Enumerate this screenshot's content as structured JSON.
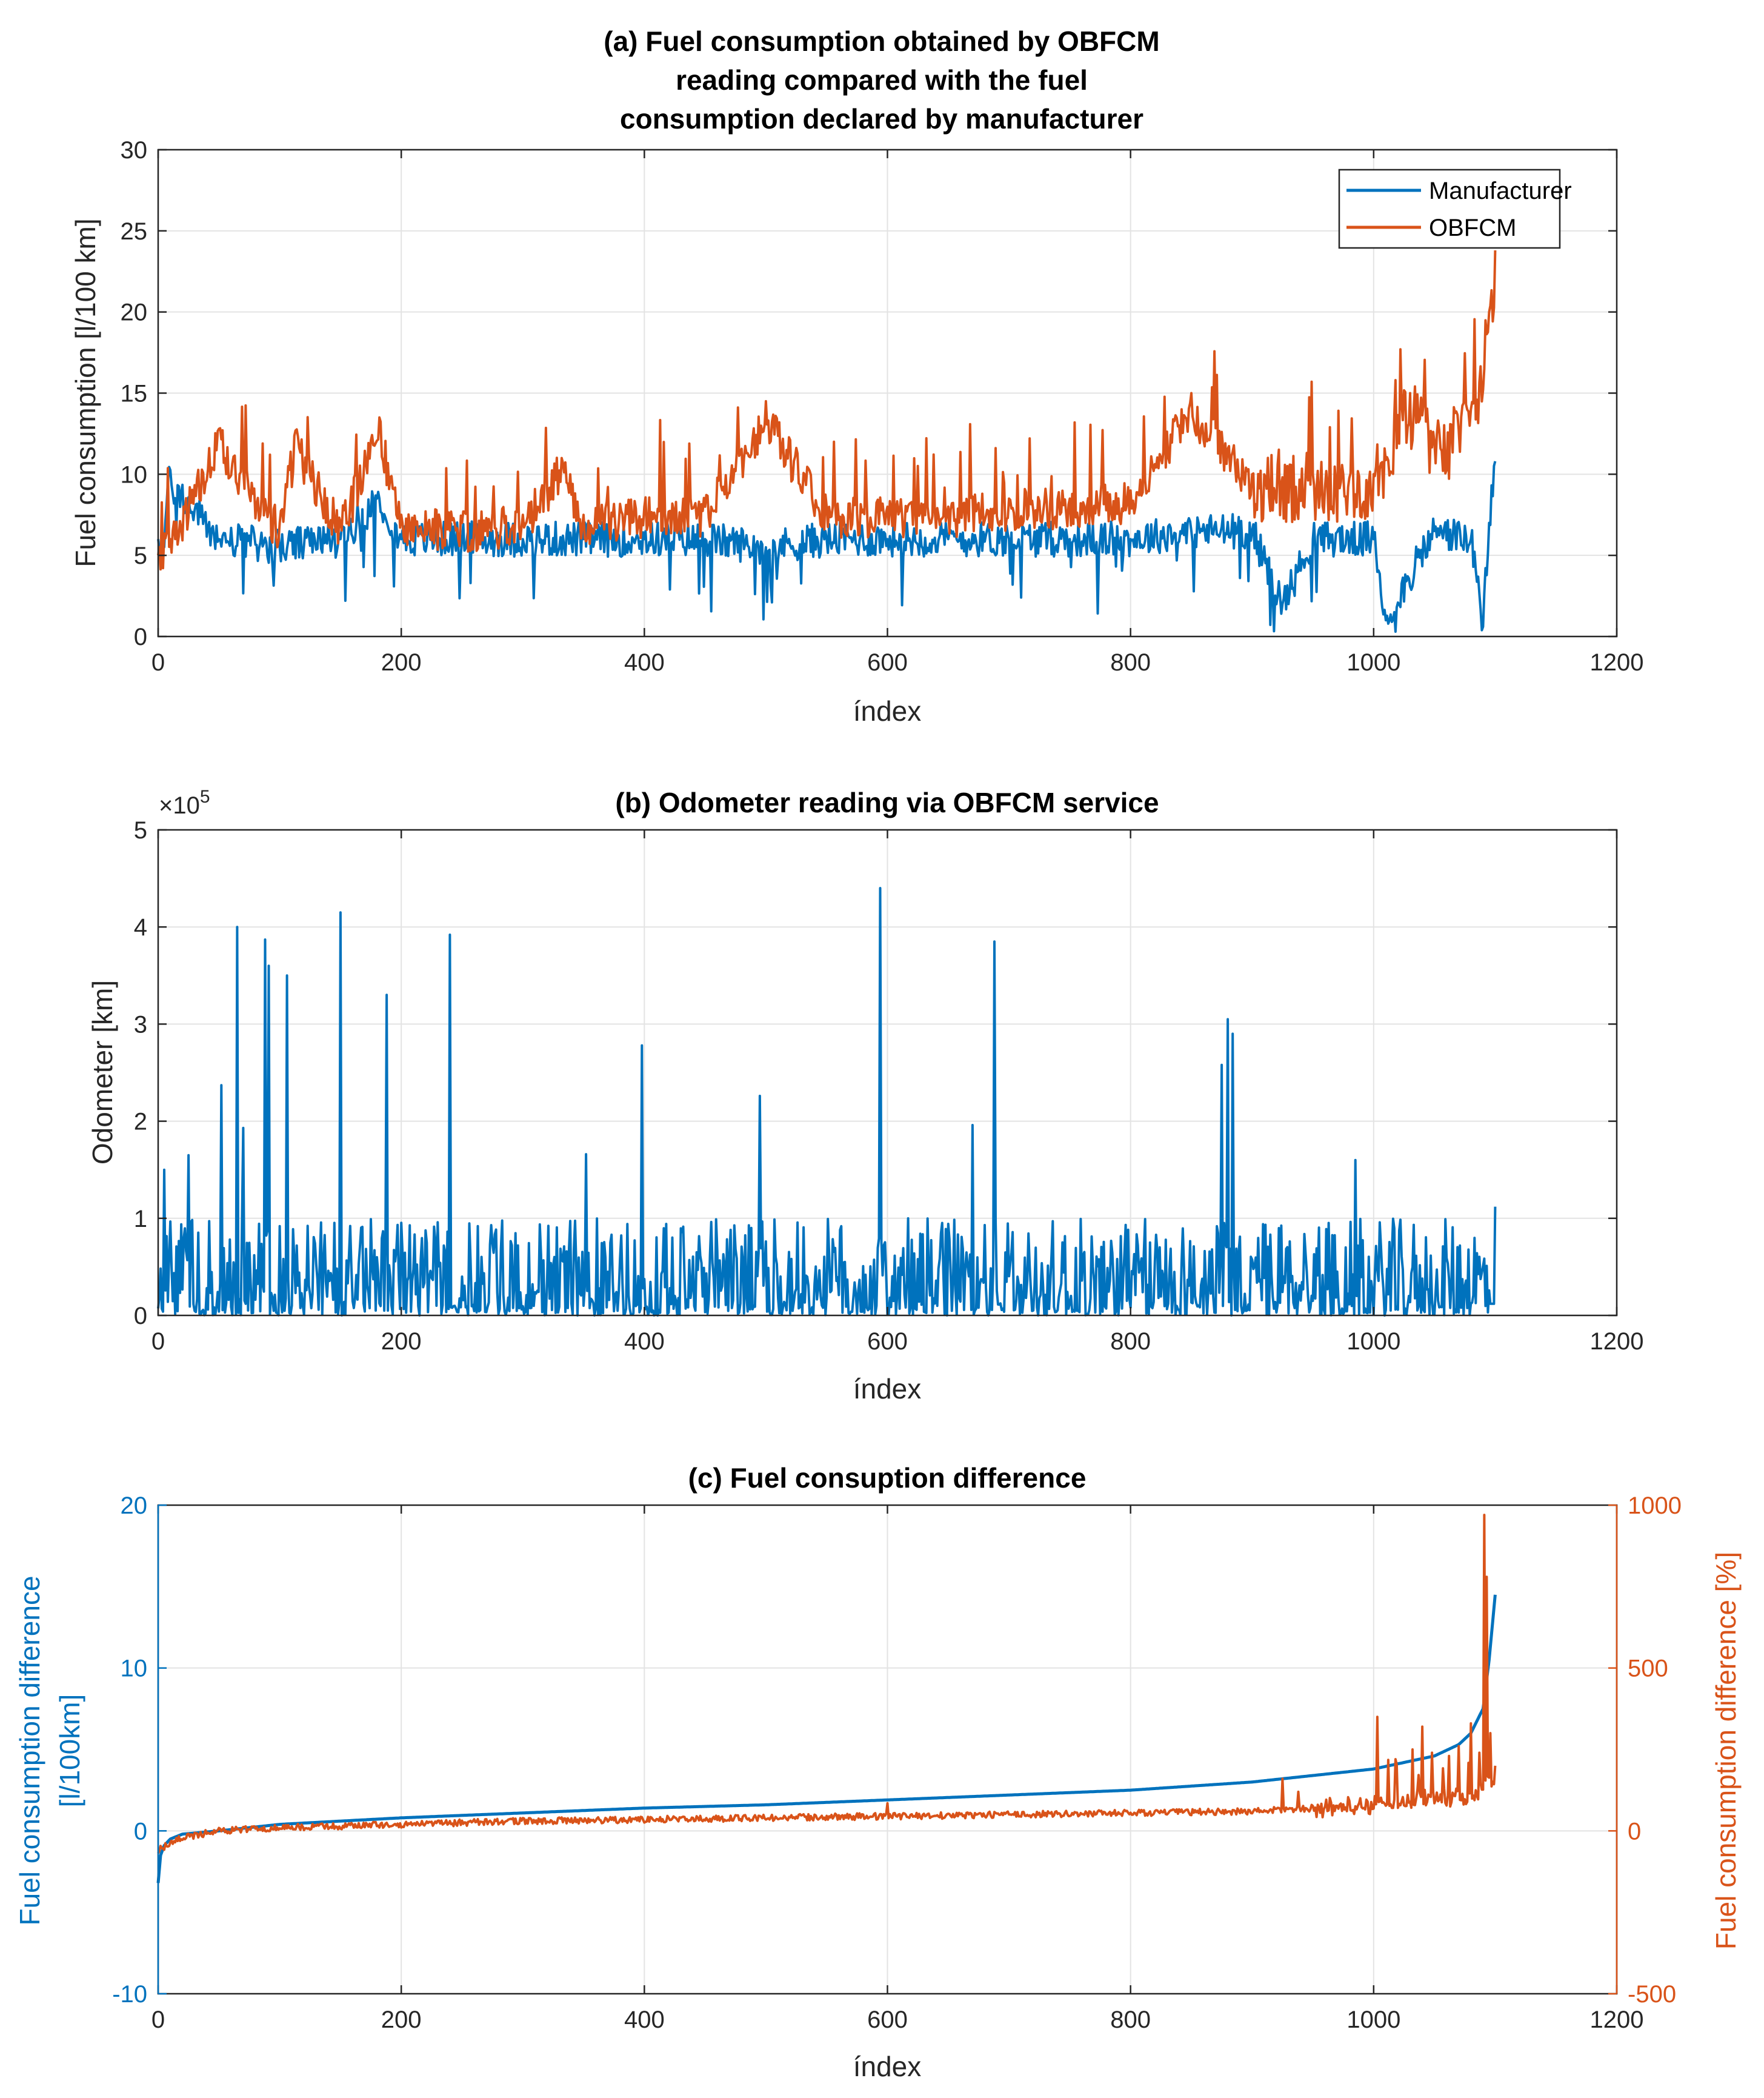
{
  "colors": {
    "blue": "#0072BD",
    "orange": "#D95319",
    "axis": "#262626",
    "grid": "#e3e3e3"
  },
  "chart_data": [
    {
      "id": "a",
      "type": "line",
      "title_lines": [
        "(a) Fuel consumption obtained by OBFCM",
        "reading compared with the fuel",
        "consumption declared by manufacturer"
      ],
      "xlabel": "índex",
      "ylabel": "Fuel consumption [l/100 km]",
      "xlim": [
        0,
        1200
      ],
      "ylim": [
        0,
        30
      ],
      "xticks": [
        0,
        200,
        400,
        600,
        800,
        1000,
        1200
      ],
      "yticks": [
        0,
        5,
        10,
        15,
        20,
        25,
        30
      ],
      "legend": {
        "position": "top-right",
        "entries": [
          "Manufacturer",
          "OBFCM"
        ]
      },
      "grid": true,
      "series": [
        {
          "name": "Manufacturer",
          "color": "#0072BD",
          "x": [
            0,
            5,
            8,
            50,
            100,
            150,
            182,
            200,
            250,
            300,
            350,
            400,
            450,
            500,
            550,
            600,
            650,
            700,
            750,
            800,
            850,
            900,
            925,
            950,
            1000,
            1010,
            1050,
            1080,
            1090,
            1095,
            1100
          ],
          "y": [
            6,
            5.5,
            9.5,
            6,
            5.5,
            6,
            8.5,
            6,
            6,
            6,
            6,
            6,
            6,
            5.5,
            6,
            6,
            6,
            6,
            6,
            6,
            6.5,
            6.5,
            2,
            6,
            6,
            1,
            6.5,
            6,
            0.6,
            7,
            10.8
          ]
        },
        {
          "name": "OBFCM",
          "color": "#D95319",
          "x": [
            0,
            10,
            50,
            100,
            113,
            150,
            182,
            200,
            250,
            300,
            332,
            350,
            400,
            450,
            500,
            550,
            600,
            650,
            700,
            750,
            800,
            850,
            900,
            950,
            1000,
            1030,
            1050,
            1080,
            1095,
            1100
          ],
          "y": [
            5,
            6,
            12.8,
            7,
            12.7,
            7,
            13.5,
            7.5,
            7,
            7.5,
            11,
            7.5,
            8,
            8,
            14.5,
            8,
            8,
            8,
            8.5,
            8.5,
            9,
            15,
            10,
            10,
            10,
            15,
            12,
            14,
            20,
            23.8
          ]
        }
      ]
    },
    {
      "id": "b",
      "type": "line",
      "title_lines": [
        "(b) Odometer reading via OBFCM service"
      ],
      "xlabel": "índex",
      "ylabel": "Odometer [km]",
      "y_multiplier_base": "×10",
      "y_multiplier_exp": "5",
      "xlim": [
        0,
        1200
      ],
      "ylim": [
        0,
        5
      ],
      "xticks": [
        0,
        200,
        400,
        600,
        800,
        1000,
        1200
      ],
      "yticks": [
        0,
        1,
        2,
        3,
        4,
        5
      ],
      "grid": true,
      "series": [
        {
          "name": "Odometer",
          "color": "#0072BD",
          "peaks": [
            [
              5,
              1.5
            ],
            [
              25,
              1.65
            ],
            [
              52,
              2.37
            ],
            [
              65,
              4.0
            ],
            [
              70,
              1.93
            ],
            [
              88,
              3.87
            ],
            [
              91,
              3.6
            ],
            [
              106,
              3.5
            ],
            [
              150,
              4.15
            ],
            [
              188,
              3.3
            ],
            [
              240,
              3.92
            ],
            [
              352,
              1.66
            ],
            [
              398,
              2.78
            ],
            [
              495,
              2.26
            ],
            [
              594,
              4.4
            ],
            [
              670,
              1.96
            ],
            [
              688,
              3.85
            ],
            [
              875,
              2.58
            ],
            [
              880,
              3.05
            ],
            [
              884,
              2.9
            ],
            [
              985,
              1.6
            ],
            [
              1100,
              1.12
            ]
          ],
          "typical_max": 1.0
        }
      ]
    },
    {
      "id": "c",
      "type": "line",
      "title_lines": [
        "(c) Fuel consuption difference"
      ],
      "xlabel": "índex",
      "ylabel_left_lines": [
        "Fuel consumption difference",
        "[l/100km]"
      ],
      "ylabel_right": "Fuel consumption difference [%]",
      "xlim": [
        0,
        1200
      ],
      "ylim_left": [
        -10,
        20
      ],
      "ylim_right": [
        -500,
        1000
      ],
      "xticks": [
        0,
        200,
        400,
        600,
        800,
        1000,
        1200
      ],
      "yticks_left": [
        -10,
        0,
        10,
        20
      ],
      "yticks_right": [
        -500,
        0,
        500,
        1000
      ],
      "grid": true,
      "series": [
        {
          "name": "Difference [l/100km]",
          "axis": "left",
          "color": "#0072BD",
          "x": [
            0,
            2,
            5,
            10,
            20,
            50,
            100,
            200,
            300,
            400,
            500,
            600,
            700,
            800,
            900,
            950,
            1000,
            1050,
            1070,
            1080,
            1090,
            1095,
            1100
          ],
          "y": [
            -3.2,
            -1.5,
            -0.9,
            -0.5,
            -0.2,
            0,
            0.4,
            0.8,
            1.1,
            1.4,
            1.6,
            1.9,
            2.2,
            2.5,
            3.0,
            3.4,
            3.8,
            4.6,
            5.3,
            6.0,
            7.5,
            10.5,
            14.5
          ]
        },
        {
          "name": "Difference [%]",
          "axis": "right",
          "color": "#D95319",
          "x": [
            0,
            20,
            50,
            100,
            200,
            300,
            400,
            500,
            600,
            700,
            800,
            900,
            950,
            1000,
            1050,
            1080,
            1100
          ],
          "y": [
            -60,
            -20,
            0,
            10,
            20,
            30,
            35,
            40,
            45,
            50,
            55,
            60,
            70,
            80,
            100,
            110,
            150
          ],
          "spikes": [
            [
              600,
              85
            ],
            [
              925,
              160
            ],
            [
              938,
              120
            ],
            [
              1003,
              350
            ],
            [
              1018,
              220
            ],
            [
              1032,
              250
            ],
            [
              1040,
              320
            ],
            [
              1048,
              240
            ],
            [
              1062,
              230
            ],
            [
              1070,
              260
            ],
            [
              1080,
              330
            ],
            [
              1087,
              240
            ],
            [
              1091,
              970
            ],
            [
              1093,
              780
            ],
            [
              1096,
              300
            ],
            [
              1100,
              200
            ]
          ]
        }
      ]
    }
  ]
}
